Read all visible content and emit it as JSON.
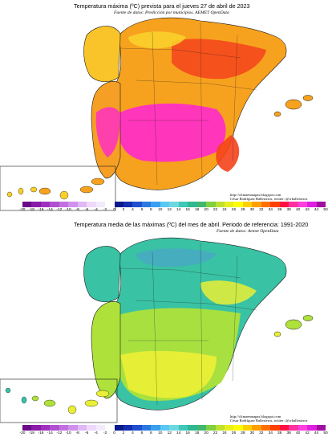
{
  "top": {
    "title": "Temperatura máxima (ºC) prevista para el jueves 27 de abril de 2023",
    "subtitle": "Fuente de datos: Predicción por municipios. AEMET OpenData",
    "credit_line1": "http://climaenmapas.blogspot.com",
    "credit_line2": "César Rodríguez Ballesteros, twitter: @crballesteros"
  },
  "bottom": {
    "title": "Temperatura media de las máximas (ºC) del mes de abril. Periodo de referencia: 1991-2020",
    "subtitle": "Fuente de datos: Aemet OpenData",
    "credit_line1": "http://climaenmapas.blogspot.com",
    "credit_line2": "César Rodríguez Ballesteros, twitter: @crballesteros"
  },
  "legend": {
    "ticks": [
      "-20",
      "-18",
      "-16",
      "-14",
      "-12",
      "-10",
      "-8",
      "-6",
      "-4",
      "-2",
      "0",
      "2",
      "4",
      "6",
      "8",
      "10",
      "12",
      "14",
      "16",
      "18",
      "20",
      "22",
      "24",
      "26",
      "28",
      "30",
      "32",
      "34",
      "36",
      "38",
      "40",
      "42",
      "44",
      "50"
    ],
    "colors": [
      "#6a0a8a",
      "#8a1aa8",
      "#a030c0",
      "#b050d0",
      "#c070e0",
      "#d090ee",
      "#e0b8f6",
      "#eed8fb",
      "#f4eafd",
      "#ffffff",
      "#0a1a8a",
      "#1430b0",
      "#1e50d0",
      "#2a78e0",
      "#3aa0ee",
      "#5ac8f4",
      "#6ed8e0",
      "#3ec8b8",
      "#30b890",
      "#40b870",
      "#80d040",
      "#c0e030",
      "#e8f020",
      "#ffff00",
      "#ffd000",
      "#ffa000",
      "#ff7000",
      "#ff4000",
      "#ff1040",
      "#ff30a0",
      "#ff40e0",
      "#e020e0",
      "#a010a0"
    ]
  },
  "colors": {
    "land_outline": "#1a1a1a",
    "top_base": "#f7a21f",
    "top_hot": "#ff2fc4",
    "top_warm": "#f5431c",
    "top_mild": "#f9d02a",
    "bottom_base": "#39c3a4",
    "bottom_warm": "#aee23b",
    "bottom_hot": "#e9ef35",
    "bottom_cool": "#4aa6c6"
  }
}
